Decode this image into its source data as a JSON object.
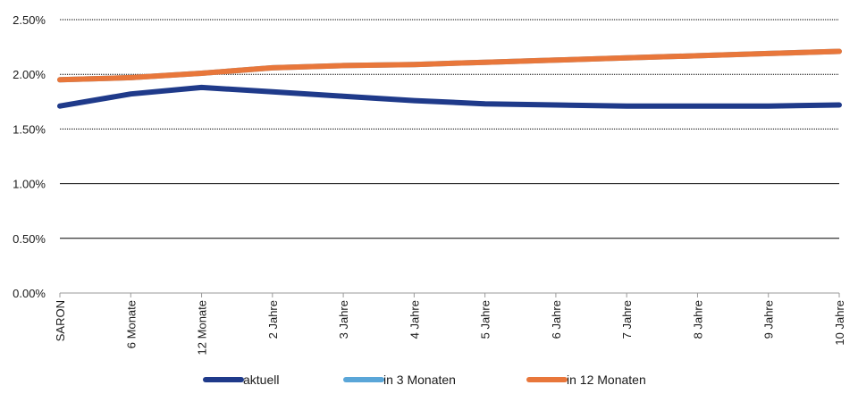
{
  "chart_data": {
    "type": "line",
    "title": "",
    "xlabel": "",
    "ylabel": "",
    "categories": [
      "SARON",
      "6 Monate",
      "12 Monate",
      "2 Jahre",
      "3 Jahre",
      "4 Jahre",
      "5 Jahre",
      "6 Jahre",
      "7 Jahre",
      "8 Jahre",
      "9 Jahre",
      "10 Jahre"
    ],
    "ylim": [
      0,
      0.025
    ],
    "yticks": [
      {
        "value": 0.0,
        "label": "0.00%"
      },
      {
        "value": 0.005,
        "label": "0.50%"
      },
      {
        "value": 0.01,
        "label": "1.00%"
      },
      {
        "value": 0.015,
        "label": "1.50%"
      },
      {
        "value": 0.02,
        "label": "2.00%"
      },
      {
        "value": 0.025,
        "label": "2.50%"
      }
    ],
    "grid": true,
    "legend_position": "bottom",
    "series": [
      {
        "name": "aktuell",
        "color": "#1f3a8a",
        "values": [
          0.0171,
          0.0182,
          0.0188,
          0.0184,
          0.018,
          0.0176,
          0.0173,
          0.0172,
          0.0171,
          0.0171,
          0.0171,
          0.0172
        ]
      },
      {
        "name": "in 3 Monaten",
        "color": "#5aa6d8",
        "values": [
          0.0195,
          0.0197,
          0.0201,
          0.0206,
          0.0208,
          0.0209,
          0.0211,
          0.0213,
          0.0215,
          0.0217,
          0.0219,
          0.0221
        ]
      },
      {
        "name": "in 12 Monaten",
        "color": "#e8773b",
        "values": [
          0.0195,
          0.0197,
          0.0201,
          0.0206,
          0.0208,
          0.0209,
          0.0211,
          0.0213,
          0.0215,
          0.0217,
          0.0219,
          0.0221
        ]
      }
    ]
  }
}
